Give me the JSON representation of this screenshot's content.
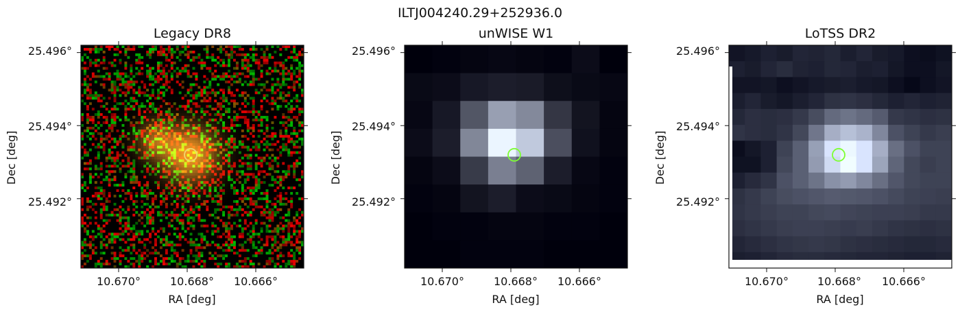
{
  "suptitle": "ILTJ004240.29+252936.0",
  "chart_data": [
    {
      "type": "heatmap",
      "title": "Legacy DR8",
      "xlabel": "RA [deg]",
      "ylabel": "Dec [deg]",
      "xticks": [
        "10.670°",
        "10.668°",
        "10.666°"
      ],
      "yticks": [
        "25.496°",
        "25.494°",
        "25.492°"
      ],
      "xtick_values": [
        10.67,
        10.668,
        10.666
      ],
      "ytick_values": [
        25.496,
        25.494,
        25.492
      ],
      "xlim": [
        10.6711,
        10.6646
      ],
      "ylim": [
        25.4901,
        25.4962
      ],
      "marker": {
        "shape": "circle",
        "ra": 10.6679,
        "dec": 25.4932,
        "color": "#f1d36a"
      },
      "sources": [
        {
          "ra": 10.6679,
          "dec": 25.4932,
          "brightness": 1.0
        },
        {
          "ra": 10.6689,
          "dec": 25.4936,
          "brightness": 0.6
        }
      ],
      "colormap": "rgb-noise"
    },
    {
      "type": "heatmap",
      "title": "unWISE W1",
      "xlabel": "RA [deg]",
      "ylabel": "Dec [deg]",
      "xticks": [
        "10.670°",
        "10.668°",
        "10.666°"
      ],
      "yticks": [
        "25.496°",
        "25.494°",
        "25.492°"
      ],
      "xtick_values": [
        10.67,
        10.668,
        10.666
      ],
      "ytick_values": [
        25.496,
        25.494,
        25.492
      ],
      "xlim": [
        10.6711,
        10.6646
      ],
      "ylim": [
        25.4901,
        25.4962
      ],
      "marker": {
        "shape": "circle",
        "ra": 10.6679,
        "dec": 25.4932,
        "color": "#7dff32"
      },
      "grid": [
        [
          0.0,
          0.01,
          0.02,
          0.03,
          0.02,
          0.01,
          0.05,
          0.0
        ],
        [
          0.04,
          0.05,
          0.1,
          0.12,
          0.11,
          0.06,
          0.04,
          0.03
        ],
        [
          0.03,
          0.1,
          0.35,
          0.65,
          0.56,
          0.22,
          0.08,
          0.02
        ],
        [
          0.05,
          0.12,
          0.55,
          1.0,
          0.82,
          0.32,
          0.07,
          0.02
        ],
        [
          0.02,
          0.05,
          0.24,
          0.52,
          0.4,
          0.12,
          0.03,
          0.01
        ],
        [
          0.01,
          0.02,
          0.08,
          0.12,
          0.05,
          0.04,
          0.02,
          0.01
        ],
        [
          0.0,
          0.01,
          0.01,
          0.02,
          0.02,
          0.01,
          0.01,
          0.0
        ],
        [
          0.0,
          0.0,
          0.01,
          0.01,
          0.01,
          0.0,
          0.0,
          0.0
        ]
      ],
      "colormap": "bone"
    },
    {
      "type": "heatmap",
      "title": "LoTSS DR2",
      "xlabel": "RA [deg]",
      "ylabel": "Dec [deg]",
      "xticks": [
        "10.670°",
        "10.668°",
        "10.666°"
      ],
      "yticks": [
        "25.496°",
        "25.494°",
        "25.492°"
      ],
      "xtick_values": [
        10.67,
        10.668,
        10.666
      ],
      "ytick_values": [
        25.496,
        25.494,
        25.492
      ],
      "xlim": [
        10.6711,
        10.6646
      ],
      "ylim": [
        25.4901,
        25.4962
      ],
      "marker": {
        "shape": "circle",
        "ra": 10.6679,
        "dec": 25.4932,
        "color": "#7dff32"
      },
      "grid": [
        [
          0.05,
          0.07,
          0.1,
          0.08,
          0.12,
          0.11,
          0.13,
          0.09,
          0.12,
          0.08,
          0.07,
          0.03,
          0.02,
          0.04
        ],
        [
          0.1,
          0.08,
          0.12,
          0.15,
          0.11,
          0.1,
          0.13,
          0.12,
          0.09,
          0.1,
          0.06,
          0.03,
          0.03,
          0.06
        ],
        [
          0.05,
          0.05,
          0.06,
          0.03,
          0.05,
          0.07,
          0.08,
          0.09,
          0.07,
          0.06,
          0.03,
          0.0,
          0.03,
          0.05
        ],
        [
          0.09,
          0.12,
          0.08,
          0.06,
          0.09,
          0.12,
          0.17,
          0.18,
          0.16,
          0.13,
          0.1,
          0.12,
          0.1,
          0.11
        ],
        [
          0.13,
          0.16,
          0.15,
          0.16,
          0.2,
          0.28,
          0.4,
          0.44,
          0.4,
          0.34,
          0.2,
          0.18,
          0.16,
          0.17
        ],
        [
          0.18,
          0.16,
          0.15,
          0.18,
          0.26,
          0.45,
          0.68,
          0.75,
          0.7,
          0.52,
          0.3,
          0.24,
          0.2,
          0.22
        ],
        [
          0.02,
          0.06,
          0.1,
          0.24,
          0.36,
          0.62,
          0.9,
          0.98,
          0.9,
          0.68,
          0.42,
          0.3,
          0.24,
          0.24
        ],
        [
          0.04,
          0.04,
          0.1,
          0.26,
          0.36,
          0.6,
          0.86,
          1.0,
          0.9,
          0.64,
          0.38,
          0.26,
          0.22,
          0.24
        ],
        [
          0.1,
          0.14,
          0.18,
          0.3,
          0.36,
          0.44,
          0.56,
          0.6,
          0.52,
          0.42,
          0.32,
          0.26,
          0.24,
          0.24
        ],
        [
          0.17,
          0.2,
          0.24,
          0.28,
          0.3,
          0.32,
          0.34,
          0.33,
          0.32,
          0.3,
          0.27,
          0.24,
          0.23,
          0.22
        ],
        [
          0.18,
          0.2,
          0.22,
          0.24,
          0.24,
          0.26,
          0.27,
          0.25,
          0.24,
          0.23,
          0.23,
          0.22,
          0.2,
          0.2
        ],
        [
          0.16,
          0.18,
          0.2,
          0.22,
          0.23,
          0.23,
          0.22,
          0.21,
          0.22,
          0.2,
          0.18,
          0.17,
          0.16,
          0.17
        ],
        [
          0.12,
          0.14,
          0.16,
          0.18,
          0.19,
          0.2,
          0.19,
          0.17,
          0.16,
          0.15,
          0.14,
          0.13,
          0.13,
          0.14
        ],
        [
          0.09,
          0.1,
          0.12,
          0.14,
          0.15,
          0.15,
          0.14,
          0.13,
          0.12,
          0.12,
          0.11,
          0.1,
          0.1,
          0.11
        ]
      ],
      "colormap": "bone-tinted"
    }
  ]
}
